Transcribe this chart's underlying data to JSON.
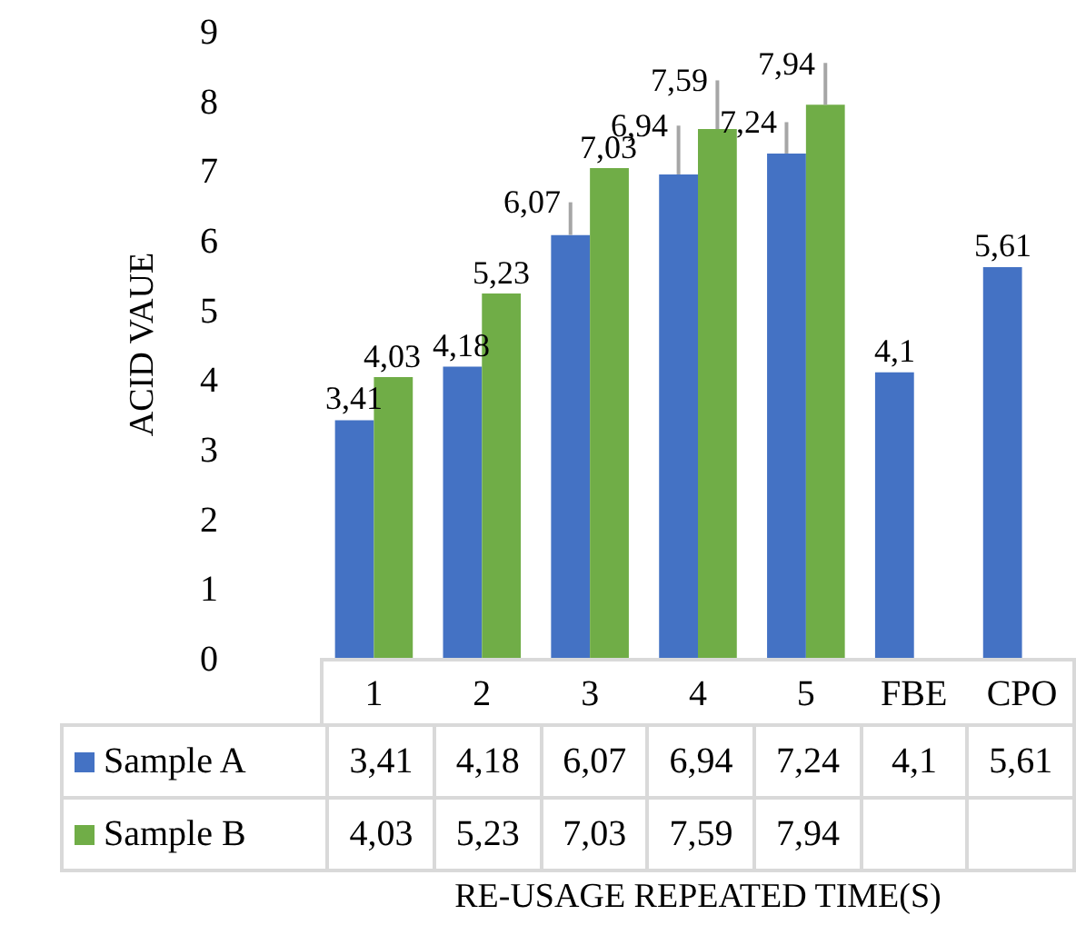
{
  "chart_data": {
    "type": "bar",
    "ylabel": "ACID VAUE",
    "xlabel": "RE-USAGE REPEATED TIME(S)",
    "categories": [
      "1",
      "2",
      "3",
      "4",
      "5",
      "FBE",
      "CPO"
    ],
    "series": [
      {
        "name": "Sample A",
        "color": "#4472c4",
        "values": [
          3.41,
          4.18,
          6.07,
          6.94,
          7.24,
          4.1,
          5.61
        ],
        "value_labels": [
          "3,41",
          "4,18",
          "6,07",
          "6,94",
          "7,24",
          "4,1",
          "5,61"
        ],
        "errors": [
          null,
          null,
          [
            6.07,
            6.54
          ],
          [
            6.94,
            7.64
          ],
          [
            7.24,
            7.69
          ],
          null,
          null
        ]
      },
      {
        "name": "Sample B",
        "color": "#70ad47",
        "values": [
          4.03,
          5.23,
          7.03,
          7.59,
          7.94,
          null,
          null
        ],
        "value_labels": [
          "4,03",
          "5,23",
          "7,03",
          "7,59",
          "7,94",
          null,
          null
        ],
        "errors": [
          null,
          null,
          null,
          [
            7.59,
            8.29
          ],
          [
            7.94,
            8.54
          ],
          null,
          null
        ]
      }
    ],
    "ylim": [
      0,
      9
    ],
    "yticks": [
      0,
      1,
      2,
      3,
      4,
      5,
      6,
      7,
      8,
      9
    ],
    "grid": false,
    "legend": "bottom"
  }
}
